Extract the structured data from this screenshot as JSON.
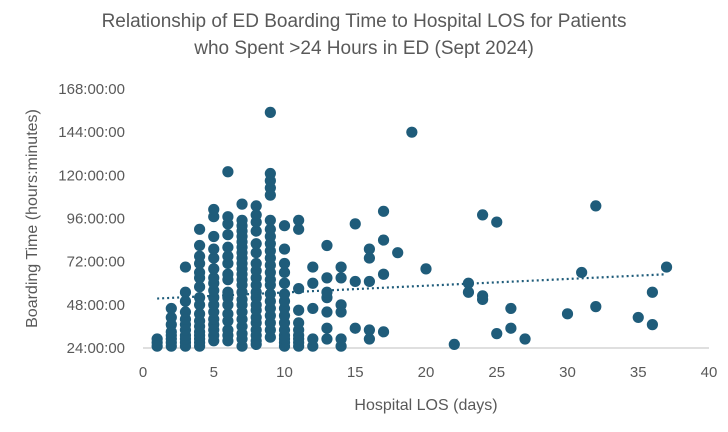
{
  "chart_data": {
    "type": "scatter",
    "title_line1": "Relationship of ED Boarding Time to Hospital LOS for Patients",
    "title_line2": "who Spent >24 Hours in ED (Sept 2024)",
    "xlabel": "Hospital LOS (days)",
    "ylabel": "Boarding Time (hours:minutes)",
    "xlim": [
      0,
      40
    ],
    "ylim": [
      24,
      168
    ],
    "x_ticks": [
      0,
      5,
      10,
      15,
      20,
      25,
      30,
      35,
      40
    ],
    "y_ticks": [
      24,
      48,
      72,
      96,
      120,
      144,
      168
    ],
    "y_tick_labels": [
      "24:00:00",
      "48:00:00",
      "72:00:00",
      "96:00:00",
      "120:00:00",
      "144:00:00",
      "168:00:00"
    ],
    "marker_color": "#1f5c7a",
    "trendline": {
      "type": "linear",
      "style": "dotted",
      "color": "#1f5c7a",
      "x": [
        1,
        37
      ],
      "y": [
        51.5,
        65
      ]
    },
    "points": [
      [
        1,
        27
      ],
      [
        1,
        29
      ],
      [
        1,
        25
      ],
      [
        2,
        25
      ],
      [
        2,
        27
      ],
      [
        2,
        29
      ],
      [
        2,
        31
      ],
      [
        2,
        33
      ],
      [
        2,
        37
      ],
      [
        2,
        41
      ],
      [
        2,
        46
      ],
      [
        3,
        25
      ],
      [
        3,
        27
      ],
      [
        3,
        29
      ],
      [
        3,
        31
      ],
      [
        3,
        34
      ],
      [
        3,
        37
      ],
      [
        3,
        40
      ],
      [
        3,
        44
      ],
      [
        3,
        50
      ],
      [
        3,
        55
      ],
      [
        3,
        69
      ],
      [
        4,
        25
      ],
      [
        4,
        27
      ],
      [
        4,
        29
      ],
      [
        4,
        31
      ],
      [
        4,
        33
      ],
      [
        4,
        36
      ],
      [
        4,
        39
      ],
      [
        4,
        43
      ],
      [
        4,
        48
      ],
      [
        4,
        52
      ],
      [
        4,
        58
      ],
      [
        4,
        63
      ],
      [
        4,
        66
      ],
      [
        4,
        71
      ],
      [
        4,
        75
      ],
      [
        4,
        81
      ],
      [
        4,
        90
      ],
      [
        5,
        28
      ],
      [
        5,
        31
      ],
      [
        5,
        34
      ],
      [
        5,
        37
      ],
      [
        5,
        40
      ],
      [
        5,
        44
      ],
      [
        5,
        48
      ],
      [
        5,
        52
      ],
      [
        5,
        56
      ],
      [
        5,
        60
      ],
      [
        5,
        63
      ],
      [
        5,
        68
      ],
      [
        5,
        74
      ],
      [
        5,
        79
      ],
      [
        5,
        86
      ],
      [
        5,
        97
      ],
      [
        5,
        101
      ],
      [
        6,
        28
      ],
      [
        6,
        31
      ],
      [
        6,
        34
      ],
      [
        6,
        39
      ],
      [
        6,
        43
      ],
      [
        6,
        48
      ],
      [
        6,
        52
      ],
      [
        6,
        55
      ],
      [
        6,
        62
      ],
      [
        6,
        65
      ],
      [
        6,
        71
      ],
      [
        6,
        75
      ],
      [
        6,
        80
      ],
      [
        6,
        87
      ],
      [
        6,
        93
      ],
      [
        6,
        97
      ],
      [
        6,
        122
      ],
      [
        7,
        25
      ],
      [
        7,
        29
      ],
      [
        7,
        32
      ],
      [
        7,
        36
      ],
      [
        7,
        40
      ],
      [
        7,
        44
      ],
      [
        7,
        48
      ],
      [
        7,
        51
      ],
      [
        7,
        55
      ],
      [
        7,
        59
      ],
      [
        7,
        62
      ],
      [
        7,
        65
      ],
      [
        7,
        68
      ],
      [
        7,
        71
      ],
      [
        7,
        74
      ],
      [
        7,
        77
      ],
      [
        7,
        80
      ],
      [
        7,
        83
      ],
      [
        7,
        86
      ],
      [
        7,
        89
      ],
      [
        7,
        92
      ],
      [
        7,
        95
      ],
      [
        7,
        104
      ],
      [
        8,
        26
      ],
      [
        8,
        28
      ],
      [
        8,
        31
      ],
      [
        8,
        34
      ],
      [
        8,
        38
      ],
      [
        8,
        41
      ],
      [
        8,
        45
      ],
      [
        8,
        48
      ],
      [
        8,
        52
      ],
      [
        8,
        55
      ],
      [
        8,
        59
      ],
      [
        8,
        63
      ],
      [
        8,
        67
      ],
      [
        8,
        71
      ],
      [
        8,
        77
      ],
      [
        8,
        82
      ],
      [
        8,
        89
      ],
      [
        8,
        94
      ],
      [
        8,
        98
      ],
      [
        8,
        103
      ],
      [
        9,
        30
      ],
      [
        9,
        34
      ],
      [
        9,
        38
      ],
      [
        9,
        42
      ],
      [
        9,
        46
      ],
      [
        9,
        50
      ],
      [
        9,
        54
      ],
      [
        9,
        59
      ],
      [
        9,
        62
      ],
      [
        9,
        66
      ],
      [
        9,
        70
      ],
      [
        9,
        74
      ],
      [
        9,
        78
      ],
      [
        9,
        82
      ],
      [
        9,
        86
      ],
      [
        9,
        90
      ],
      [
        9,
        95
      ],
      [
        9,
        109
      ],
      [
        9,
        113
      ],
      [
        9,
        117
      ],
      [
        9,
        121
      ],
      [
        9,
        155
      ],
      [
        10,
        25
      ],
      [
        10,
        27
      ],
      [
        10,
        29
      ],
      [
        10,
        31
      ],
      [
        10,
        34
      ],
      [
        10,
        38
      ],
      [
        10,
        42
      ],
      [
        10,
        46
      ],
      [
        10,
        50
      ],
      [
        10,
        54
      ],
      [
        10,
        60
      ],
      [
        10,
        66
      ],
      [
        10,
        71
      ],
      [
        10,
        79
      ],
      [
        10,
        92
      ],
      [
        11,
        25
      ],
      [
        11,
        27
      ],
      [
        11,
        29
      ],
      [
        11,
        31
      ],
      [
        11,
        34
      ],
      [
        11,
        38
      ],
      [
        11,
        45
      ],
      [
        11,
        57
      ],
      [
        11,
        90
      ],
      [
        11,
        95
      ],
      [
        12,
        25
      ],
      [
        12,
        29
      ],
      [
        12,
        46
      ],
      [
        12,
        60
      ],
      [
        12,
        69
      ],
      [
        13,
        29
      ],
      [
        13,
        35
      ],
      [
        13,
        44
      ],
      [
        13,
        52
      ],
      [
        13,
        55
      ],
      [
        13,
        63
      ],
      [
        13,
        81
      ],
      [
        14,
        25
      ],
      [
        14,
        29
      ],
      [
        14,
        44
      ],
      [
        14,
        48
      ],
      [
        14,
        63
      ],
      [
        14,
        69
      ],
      [
        15,
        35
      ],
      [
        15,
        61
      ],
      [
        15,
        93
      ],
      [
        16,
        29
      ],
      [
        16,
        34
      ],
      [
        16,
        61
      ],
      [
        16,
        74
      ],
      [
        16,
        79
      ],
      [
        17,
        33
      ],
      [
        17,
        65
      ],
      [
        17,
        84
      ],
      [
        17,
        100
      ],
      [
        18,
        77
      ],
      [
        19,
        144
      ],
      [
        20,
        68
      ],
      [
        22,
        26
      ],
      [
        23,
        55
      ],
      [
        23,
        60
      ],
      [
        24,
        51
      ],
      [
        24,
        53
      ],
      [
        24,
        98
      ],
      [
        25,
        32
      ],
      [
        25,
        94
      ],
      [
        26,
        35
      ],
      [
        26,
        46
      ],
      [
        27,
        29
      ],
      [
        30,
        43
      ],
      [
        31,
        66
      ],
      [
        32,
        47
      ],
      [
        32,
        103
      ],
      [
        35,
        41
      ],
      [
        36,
        37
      ],
      [
        36,
        55
      ],
      [
        37,
        69
      ]
    ]
  }
}
